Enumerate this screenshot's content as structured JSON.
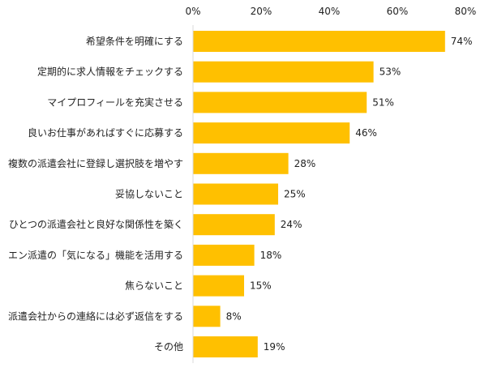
{
  "chart_data": {
    "type": "bar",
    "orientation": "horizontal",
    "categories": [
      "希望条件を明確にする",
      "定期的に求人情報をチェックする",
      "マイプロフィールを充実させる",
      "良いお仕事があればすぐに応募する",
      "複数の派遣会社に登録し選択肢を増やす",
      "妥協しないこと",
      "ひとつの派遣会社と良好な関係性を築く",
      "エン派遣の「気になる」機能を活用する",
      "焦らないこと",
      "派遣会社からの連絡には必ず返信をする",
      "その他"
    ],
    "values": [
      74,
      53,
      51,
      46,
      28,
      25,
      24,
      18,
      15,
      8,
      19
    ],
    "value_labels": [
      "74%",
      "53%",
      "51%",
      "46%",
      "28%",
      "25%",
      "24%",
      "18%",
      "15%",
      "8%",
      "19%"
    ],
    "x_ticks": [
      0,
      20,
      40,
      60,
      80
    ],
    "x_tick_labels": [
      "0%",
      "20%",
      "40%",
      "60%",
      "80%"
    ],
    "xlim": [
      0,
      80
    ],
    "grid": false,
    "legend": "none",
    "bar_color": "#FFC000",
    "axis_color": "#D9D9D9"
  }
}
